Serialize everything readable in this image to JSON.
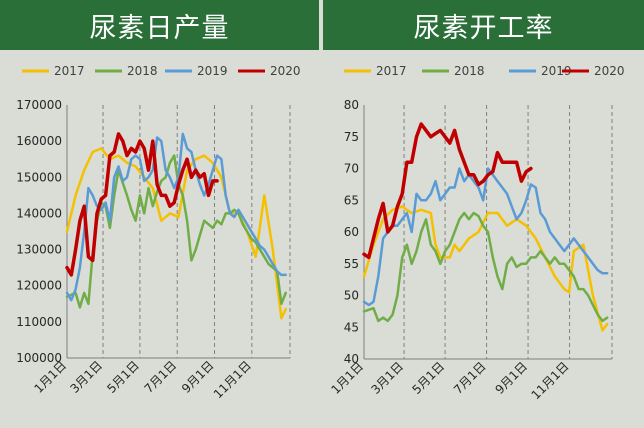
{
  "chart_data": [
    {
      "type": "line",
      "title": "尿素日产量",
      "xlabel": "",
      "ylabel": "",
      "ylim": [
        100000,
        170000
      ],
      "yticks": [
        100000,
        110000,
        120000,
        130000,
        140000,
        150000,
        160000,
        170000
      ],
      "ytick_labels": [
        "100000",
        "110000",
        "120000",
        "130000",
        "140000",
        "150000",
        "160000",
        "170000"
      ],
      "xticks": [
        "1月1日",
        "3月1日",
        "5月1日",
        "7月1日",
        "9月1日",
        "11月1日"
      ],
      "xlim_weeks": [
        0,
        52
      ],
      "grid": "vertical dashed",
      "legend_position": "top",
      "series": [
        {
          "name": "2017",
          "color": "#f5c000",
          "x": [
            0,
            2,
            4,
            6,
            8,
            10,
            12,
            14,
            16,
            18,
            20,
            22,
            24,
            26,
            28,
            30,
            32,
            34,
            36,
            38,
            40,
            42,
            44,
            46,
            48,
            50,
            51
          ],
          "y": [
            135000,
            145000,
            152000,
            157000,
            158000,
            155000,
            156000,
            154000,
            153000,
            150000,
            147000,
            138000,
            140000,
            139000,
            152000,
            155000,
            156000,
            154000,
            150000,
            140000,
            140000,
            135000,
            128000,
            145000,
            130000,
            111000,
            113500
          ]
        },
        {
          "name": "2018",
          "color": "#70ad47",
          "x": [
            0,
            2,
            3,
            4,
            5,
            6,
            7,
            8,
            9,
            10,
            11,
            12,
            14,
            15,
            16,
            17,
            18,
            19,
            20,
            21,
            22,
            23,
            24,
            25,
            26,
            27,
            28,
            29,
            30,
            31,
            32,
            33,
            34,
            35,
            36,
            37,
            38,
            39,
            40,
            41,
            42,
            43,
            44,
            45,
            46,
            47,
            48,
            49,
            50,
            51
          ],
          "y": [
            117000,
            118000,
            114000,
            118000,
            115000,
            129000,
            138000,
            143000,
            142000,
            136000,
            145000,
            152000,
            145000,
            141000,
            138000,
            145000,
            140000,
            147000,
            142000,
            146000,
            149000,
            150000,
            154000,
            156000,
            148000,
            145000,
            138000,
            127000,
            130000,
            134000,
            138000,
            137000,
            136000,
            138000,
            137000,
            140000,
            140000,
            141000,
            140000,
            137000,
            135000,
            133000,
            132000,
            130000,
            128000,
            126000,
            125000,
            124000,
            115000,
            118000
          ]
        },
        {
          "name": "2019",
          "color": "#5b9bd5",
          "x": [
            0,
            1,
            2,
            3,
            4,
            5,
            6,
            7,
            8,
            9,
            10,
            11,
            12,
            13,
            14,
            15,
            16,
            17,
            18,
            19,
            20,
            21,
            22,
            23,
            24,
            25,
            26,
            27,
            28,
            29,
            30,
            31,
            32,
            33,
            34,
            35,
            36,
            37,
            38,
            39,
            40,
            41,
            42,
            43,
            44,
            45,
            46,
            47,
            48,
            49,
            50,
            51
          ],
          "y": [
            118000,
            116000,
            119000,
            125000,
            135000,
            147000,
            145000,
            142000,
            141000,
            143000,
            138000,
            150000,
            153000,
            149000,
            150000,
            155000,
            156000,
            155000,
            149000,
            150000,
            152000,
            161000,
            160000,
            152000,
            150000,
            147000,
            150000,
            162000,
            158000,
            157000,
            152000,
            148000,
            145000,
            148000,
            152000,
            156000,
            155000,
            145000,
            140000,
            139000,
            141000,
            139000,
            137000,
            135000,
            133000,
            131000,
            130000,
            128000,
            126000,
            124000,
            123000,
            123000
          ]
        },
        {
          "name": "2020",
          "color": "#c00000",
          "x": [
            0,
            1,
            2,
            3,
            4,
            5,
            6,
            7,
            8,
            9,
            10,
            11,
            12,
            13,
            14,
            15,
            16,
            17,
            18,
            19,
            20,
            21,
            22,
            23,
            24,
            25,
            26,
            27,
            28,
            29,
            30,
            31,
            32,
            33,
            34,
            35
          ],
          "y": [
            125000,
            123000,
            130000,
            138000,
            142000,
            128000,
            127000,
            140000,
            144000,
            145000,
            156000,
            157000,
            162000,
            160000,
            156000,
            158000,
            157000,
            160000,
            158000,
            152000,
            160000,
            148000,
            145000,
            145000,
            142000,
            143000,
            148000,
            152000,
            155000,
            150000,
            152000,
            150000,
            151000,
            145000,
            149000,
            149000
          ]
        }
      ]
    },
    {
      "type": "line",
      "title": "尿素开工率",
      "xlabel": "",
      "ylabel": "",
      "ylim": [
        40,
        80
      ],
      "yticks": [
        40,
        45,
        50,
        55,
        60,
        65,
        70,
        75,
        80
      ],
      "ytick_labels": [
        "40",
        "45",
        "50",
        "55",
        "60",
        "65",
        "70",
        "75",
        "80"
      ],
      "xticks": [
        "1月1日",
        "3月1日",
        "5月1日",
        "7月1日",
        "9月1日",
        "11月1日"
      ],
      "xlim_weeks": [
        0,
        52
      ],
      "grid": "vertical dashed",
      "legend_position": "top",
      "series": [
        {
          "name": "2017",
          "color": "#f5c000",
          "x": [
            0,
            2,
            4,
            6,
            8,
            10,
            12,
            14,
            15,
            16,
            17,
            18,
            19,
            20,
            21,
            22,
            24,
            26,
            28,
            30,
            32,
            34,
            36,
            38,
            40,
            42,
            43,
            44,
            46,
            48,
            50,
            51
          ],
          "y": [
            53,
            58,
            62,
            63.5,
            64,
            63,
            63.5,
            63,
            58,
            56,
            56,
            56,
            58,
            57,
            58,
            59,
            60,
            63,
            63,
            61,
            62,
            61,
            59,
            56,
            53,
            51,
            50.5,
            57,
            58,
            50,
            44.5,
            45.5
          ]
        },
        {
          "name": "2018",
          "color": "#70ad47",
          "x": [
            0,
            2,
            3,
            4,
            5,
            6,
            7,
            8,
            9,
            10,
            11,
            12,
            13,
            14,
            15,
            16,
            17,
            18,
            19,
            20,
            21,
            22,
            23,
            24,
            25,
            26,
            27,
            28,
            29,
            30,
            31,
            32,
            33,
            34,
            35,
            36,
            37,
            38,
            39,
            40,
            41,
            42,
            43,
            44,
            45,
            46,
            47,
            48,
            49,
            50,
            51
          ],
          "y": [
            47.5,
            48,
            46,
            46.5,
            46,
            47,
            50,
            56,
            58,
            55,
            57,
            60,
            62,
            58,
            57,
            55,
            57,
            58,
            60,
            62,
            63,
            62,
            63,
            62.5,
            61,
            60,
            56,
            53,
            51,
            55,
            56,
            54.5,
            55,
            55,
            56,
            56,
            57,
            56,
            55,
            56,
            55,
            55,
            54,
            53,
            51,
            51,
            50,
            48.5,
            47,
            46,
            46.5
          ]
        },
        {
          "name": "2019",
          "color": "#5b9bd5",
          "x": [
            0,
            1,
            2,
            3,
            4,
            5,
            6,
            7,
            8,
            9,
            10,
            11,
            12,
            13,
            14,
            15,
            16,
            17,
            18,
            19,
            20,
            21,
            22,
            23,
            24,
            25,
            26,
            27,
            28,
            29,
            30,
            31,
            32,
            33,
            34,
            35,
            36,
            37,
            38,
            39,
            40,
            41,
            42,
            43,
            44,
            45,
            46,
            47,
            48,
            49,
            50,
            51
          ],
          "y": [
            49,
            48.5,
            49,
            53,
            59,
            60,
            61,
            61,
            62,
            63,
            60,
            66,
            65,
            65,
            66,
            68,
            65,
            66,
            67,
            67,
            70,
            68,
            69,
            68,
            67,
            65,
            70,
            69,
            68,
            67,
            66,
            64,
            62,
            63,
            65,
            67.5,
            67,
            63,
            62,
            60,
            59,
            58,
            57,
            58,
            59,
            58,
            57,
            56,
            55,
            54,
            53.5,
            53.5
          ]
        },
        {
          "name": "2020",
          "color": "#c00000",
          "x": [
            0,
            1,
            2,
            3,
            4,
            5,
            6,
            7,
            8,
            9,
            10,
            11,
            12,
            13,
            14,
            15,
            16,
            17,
            18,
            19,
            20,
            21,
            22,
            23,
            24,
            25,
            26,
            27,
            28,
            29,
            30,
            31,
            32,
            33,
            34,
            35
          ],
          "y": [
            56.5,
            56,
            59,
            62,
            64.5,
            60,
            61,
            64,
            66,
            71,
            71,
            75,
            77,
            76,
            75,
            75.5,
            76,
            75,
            74,
            76,
            73,
            71,
            69,
            69,
            67.5,
            68,
            69,
            69.5,
            72.5,
            71,
            71,
            71,
            71,
            68,
            69.5,
            70
          ]
        }
      ]
    }
  ]
}
